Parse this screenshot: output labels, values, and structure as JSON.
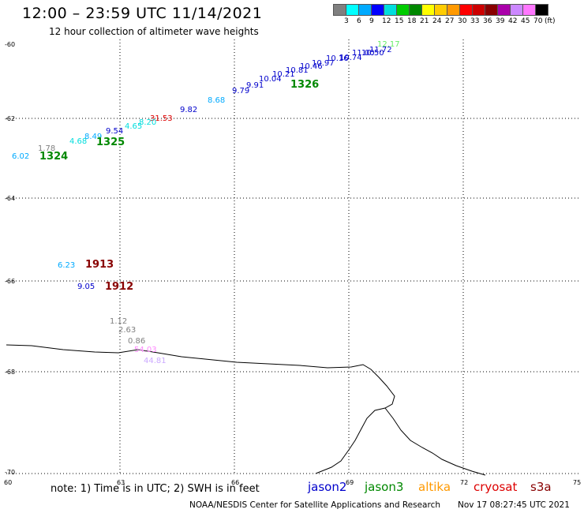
{
  "header": {
    "title": "12:00 – 23:59 UTC 11/14/2021",
    "subtitle": "12 hour collection of altimeter wave heights"
  },
  "color_scale": {
    "colors": [
      "#808080",
      "#00ffff",
      "#00aaff",
      "#0000ff",
      "#00dddd",
      "#00cc00",
      "#008800",
      "#ffff00",
      "#ffcc00",
      "#ff9900",
      "#ff0000",
      "#cc0000",
      "#880000",
      "#aa00aa",
      "#cc88ff",
      "#ff77ff",
      "#000000"
    ],
    "labels": [
      "3",
      "6",
      "9",
      "12",
      "15",
      "18",
      "21",
      "24",
      "27",
      "30",
      "33",
      "36",
      "39",
      "42",
      "45",
      "70",
      "(ft)"
    ]
  },
  "axes": {
    "lat_labels": [
      "-60",
      "-62",
      "-64",
      "-66",
      "-68",
      "-70"
    ],
    "lon_labels": [
      "60",
      "63",
      "66",
      "69",
      "72",
      "75"
    ]
  },
  "measurements": [
    {
      "text": "12.17",
      "color": "#66ee66"
    },
    {
      "text": "11.72",
      "color": "#0000cc"
    },
    {
      "text": "11.00",
      "color": "#0000cc"
    },
    {
      "text": "10.50",
      "color": "#0000cc"
    },
    {
      "text": "10.74",
      "color": "#0000cc"
    },
    {
      "text": "10.16",
      "color": "#0000cc"
    },
    {
      "text": "10.97",
      "color": "#0000cc"
    },
    {
      "text": "10.46",
      "color": "#0000cc"
    },
    {
      "text": "10.81",
      "color": "#0000cc"
    },
    {
      "text": "10.21",
      "color": "#0000cc"
    },
    {
      "text": "10.04",
      "color": "#0000cc"
    },
    {
      "text": "9.91",
      "color": "#0000cc"
    },
    {
      "text": "9.79",
      "color": "#0000cc"
    },
    {
      "text": "8.68",
      "color": "#00aaff"
    },
    {
      "text": "9.82",
      "color": "#0000cc"
    },
    {
      "text": "31.53",
      "color": "#dd0000"
    },
    {
      "text": "8.20",
      "color": "#00dddd"
    },
    {
      "text": "4.65",
      "color": "#00dddd"
    },
    {
      "text": "9.54",
      "color": "#0000cc"
    },
    {
      "text": "8.49",
      "color": "#00aaff"
    },
    {
      "text": "4.68",
      "color": "#00dddd"
    },
    {
      "text": "1.78",
      "color": "#808080"
    },
    {
      "text": "6.02",
      "color": "#00aaff"
    },
    {
      "text": "6.23",
      "color": "#00aaff"
    },
    {
      "text": "9.05",
      "color": "#0000cc"
    },
    {
      "text": "1.12",
      "color": "#808080"
    },
    {
      "text": "2.63",
      "color": "#808080"
    },
    {
      "text": "0.86",
      "color": "#808080"
    },
    {
      "text": "54.03",
      "color": "#ff88ff"
    },
    {
      "text": "44.81",
      "color": "#ccaaff"
    }
  ],
  "pass_times": [
    {
      "text": "1326",
      "color": "#008800"
    },
    {
      "text": "1325",
      "color": "#008800"
    },
    {
      "text": "1324",
      "color": "#008800"
    },
    {
      "text": "1913",
      "color": "#880000"
    },
    {
      "text": "1912",
      "color": "#880000"
    }
  ],
  "footer": {
    "note": "note:  1) Time is in UTC;  2) SWH is in feet",
    "satellites": [
      {
        "name": "jason2",
        "color": "#0000cc"
      },
      {
        "name": "jason3",
        "color": "#008800"
      },
      {
        "name": "altika",
        "color": "#ff9900"
      },
      {
        "name": "cryosat",
        "color": "#dd0000"
      },
      {
        "name": "s3a",
        "color": "#880000"
      }
    ],
    "credit": "NOAA/NESDIS Center for Satellite Applications and Research",
    "timestamp": "Nov 17 08:27:45 UTC 2021"
  }
}
